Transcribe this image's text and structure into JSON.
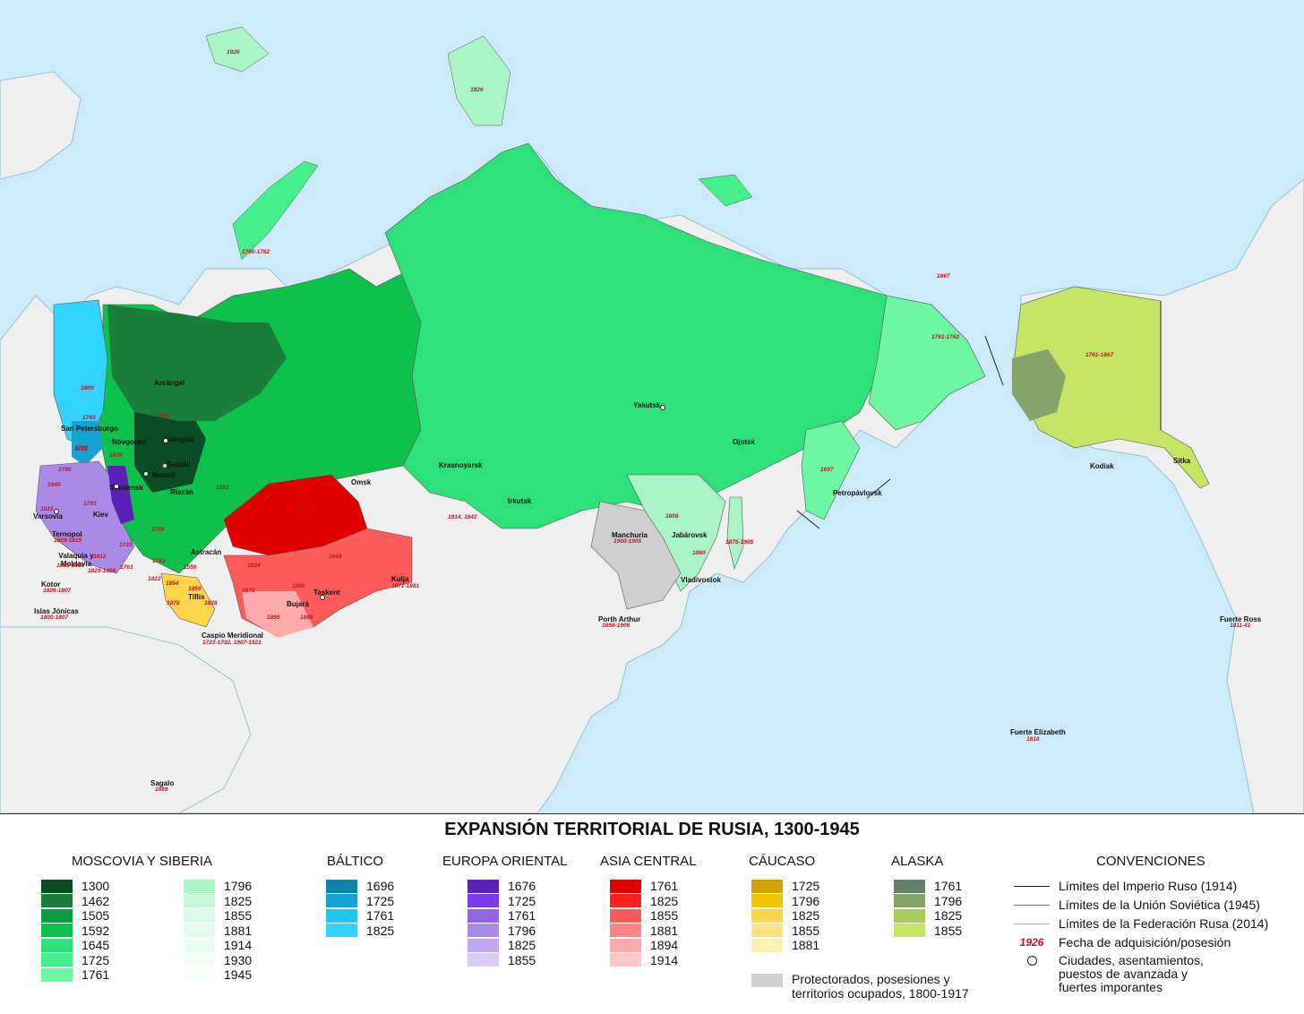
{
  "colors": {
    "ocean": "#cdeaf8",
    "land": "#efefef",
    "moscovia": [
      "#0a4d24",
      "#1b7f3c",
      "#0a9e43",
      "#0ec14d",
      "#2ee07a",
      "#45f08c",
      "#6ef7a2"
    ],
    "moscovia2": [
      "#aaf5c8",
      "#c3f8d8",
      "#d6fae4",
      "#e3fcec",
      "#ebfdf1",
      "#f2fef6"
    ],
    "baltico": [
      "#0f84a8",
      "#16a3d2",
      "#1ec6f2",
      "#33d3ff"
    ],
    "europa": [
      "#5b21b6",
      "#7c3aed",
      "#9564e0",
      "#a98ae6",
      "#c1a8ee",
      "#d9cdf5"
    ],
    "asia": [
      "#e00000",
      "#ff2020",
      "#ff5a5a",
      "#ff8585",
      "#ffabab",
      "#ffc8c8"
    ],
    "caucaso": [
      "#d1a200",
      "#f5c400",
      "#ffd54a",
      "#ffe27f",
      "#fff0b0"
    ],
    "alaska": [
      "#64806a",
      "#86a468",
      "#a7cc5c",
      "#c5e564"
    ],
    "protectorado": "#cfcfcf",
    "date_red": "#c1121f"
  },
  "map": {
    "cities": [
      {
        "name": "Arcángel"
      },
      {
        "name": "Vologda"
      },
      {
        "name": "San Petersburgo"
      },
      {
        "name": "Nóvgorod"
      },
      {
        "name": "Suzdal"
      },
      {
        "name": "Moscú"
      },
      {
        "name": "Riazán"
      },
      {
        "name": "Smolensk"
      },
      {
        "name": "Kiev"
      },
      {
        "name": "Varsovia"
      },
      {
        "name": "Ternopol"
      },
      {
        "name": "Valaquia y Moldavia"
      },
      {
        "name": "Kotor"
      },
      {
        "name": "Islas Jónicas"
      },
      {
        "name": "Astracán"
      },
      {
        "name": "Tiflis"
      },
      {
        "name": "Caspio Meridional"
      },
      {
        "name": "Omsk"
      },
      {
        "name": "Krasnoyarsk"
      },
      {
        "name": "Irkutsk"
      },
      {
        "name": "Yakutsk"
      },
      {
        "name": "Ojotsk"
      },
      {
        "name": "Petropávlovsk"
      },
      {
        "name": "Manchuria"
      },
      {
        "name": "Jabárovsk"
      },
      {
        "name": "Vladivostok"
      },
      {
        "name": "Porth Arthur"
      },
      {
        "name": "Taskent"
      },
      {
        "name": "Bujará"
      },
      {
        "name": "Kulja"
      },
      {
        "name": "Kodiak"
      },
      {
        "name": "Sitka"
      },
      {
        "name": "Fuerte Ross"
      },
      {
        "name": "Fuerte Elizabeth"
      },
      {
        "name": "Sagalo"
      }
    ],
    "dates": [
      "1926",
      "1926",
      "1760-1762",
      "1867",
      "1761-1762",
      "1761-1867",
      "1697",
      "1809",
      "1743",
      "1721",
      "1478",
      "1478",
      "1582",
      "1795",
      "1793",
      "1815",
      "1809-1815",
      "1835-1858",
      "1806-1807",
      "1800-1807",
      "1812",
      "1829-1856",
      "1783",
      "1763",
      "1733",
      "1739",
      "1556",
      "1822",
      "1824",
      "1864",
      "1859",
      "1878",
      "1828",
      "1723-1732, 1907-1921",
      "1822",
      "1848",
      "1865",
      "1873",
      "1895",
      "1868",
      "1871-1881",
      "1914, 1942",
      "1900-1905",
      "1858",
      "1860",
      "1875-1905",
      "1898-1905",
      "1811-41",
      "1818",
      "1889",
      "1945",
      "1721"
    ]
  },
  "legend": {
    "title": "EXPANSIÓN TERRITORIAL DE RUSIA, 1300-1945",
    "moscovia": {
      "heading": "MOSCOVIA Y SIBERIA",
      "col1": [
        "1300",
        "1462",
        "1505",
        "1592",
        "1645",
        "1725",
        "1761"
      ],
      "col2": [
        "1796",
        "1825",
        "1855",
        "1881",
        "1914",
        "1930",
        "1945"
      ]
    },
    "baltico": {
      "heading": "BÁLTICO",
      "years": [
        "1696",
        "1725",
        "1761",
        "1825"
      ]
    },
    "europa": {
      "heading": "EUROPA ORIENTAL",
      "years": [
        "1676",
        "1725",
        "1761",
        "1796",
        "1825",
        "1855"
      ]
    },
    "asia": {
      "heading": "ASIA CENTRAL",
      "years": [
        "1761",
        "1825",
        "1855",
        "1881",
        "1894",
        "1914"
      ]
    },
    "caucaso": {
      "heading": "CÁUCASO",
      "years": [
        "1725",
        "1796",
        "1825",
        "1855",
        "1881"
      ]
    },
    "alaska": {
      "heading": "ALASKA",
      "years": [
        "1761",
        "1796",
        "1825",
        "1855"
      ]
    },
    "protectorados": "Protectorados, posesiones y territorios ocupados, 1800-1917",
    "convenciones": {
      "heading": "CONVENCIONES",
      "imperio": "Límites del Imperio Ruso (1914)",
      "union": "Límites de la Unión Soviética (1945)",
      "federacion": "Límites de la Federación Rusa (2014)",
      "date_sample": "1926",
      "fecha": "Fecha de adquisición/posesión",
      "ciudades": "Ciudades, asentamientos, puestos de avanzada y fuertes imporantes"
    }
  }
}
